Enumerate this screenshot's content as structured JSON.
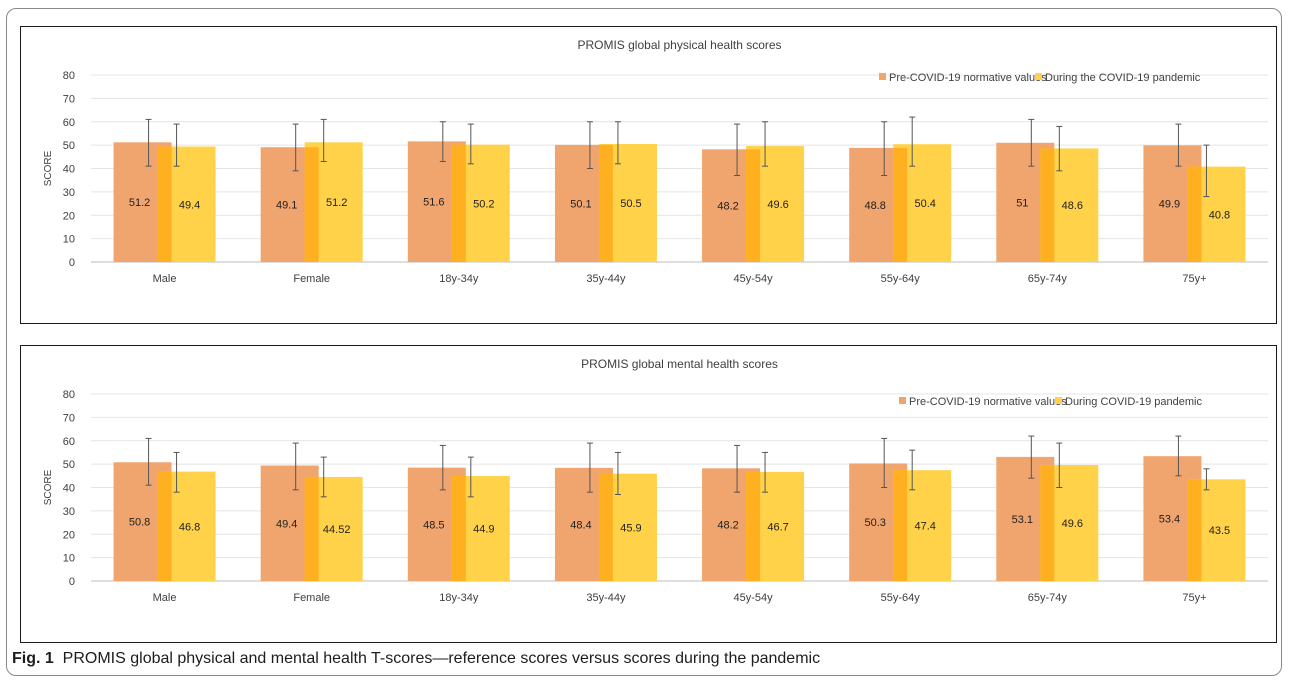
{
  "caption": {
    "label": "Fig. 1",
    "text": "PROMIS global physical and mental health T-scores—reference scores versus scores during the pandemic"
  },
  "colors": {
    "pre": "#f0a46e",
    "during": "#ffd24a",
    "overlap": "#ffb020",
    "error_bar": "#555555",
    "grid": "#e4e4e4",
    "text": "#404040"
  },
  "chart_data": [
    {
      "type": "bar",
      "title": "PROMIS global physical health scores",
      "ylabel": "SCORE",
      "xlabel": "",
      "ylim": [
        0,
        80
      ],
      "yticks": [
        0,
        10,
        20,
        30,
        40,
        50,
        60,
        70,
        80
      ],
      "grid": true,
      "legend_position": "top-right",
      "categories": [
        "Male",
        "Female",
        "18y-34y",
        "35y-44y",
        "45y-54y",
        "55y-64y",
        "65y-74y",
        "75y+"
      ],
      "series": [
        {
          "name": "Pre-COVID-19 normative values",
          "values": [
            51.2,
            49.1,
            51.6,
            50.1,
            48.2,
            48.8,
            51,
            49.9
          ],
          "labels": [
            "51.2",
            "49.1",
            "51.6",
            "50.1",
            "48.2",
            "48.8",
            "51",
            "49.9"
          ],
          "err_low": [
            41,
            39,
            43,
            40,
            37,
            37,
            41,
            41
          ],
          "err_high": [
            61,
            59,
            60,
            60,
            59,
            60,
            61,
            59
          ]
        },
        {
          "name": "During the COVID-19 pandemic",
          "values": [
            49.4,
            51.2,
            50.2,
            50.5,
            49.6,
            50.4,
            48.6,
            40.8
          ],
          "labels": [
            "49.4",
            "51.2",
            "50.2",
            "50.5",
            "49.6",
            "50.4",
            "48.6",
            "40.8"
          ],
          "err_low": [
            41,
            43,
            42,
            42,
            41,
            41,
            39,
            28
          ],
          "err_high": [
            59,
            61,
            59,
            60,
            60,
            62,
            58,
            50
          ]
        }
      ]
    },
    {
      "type": "bar",
      "title": "PROMIS global mental health scores",
      "ylabel": "SCORE",
      "xlabel": "",
      "ylim": [
        0,
        80
      ],
      "yticks": [
        0,
        10,
        20,
        30,
        40,
        50,
        60,
        70,
        80
      ],
      "grid": true,
      "legend_position": "top-right",
      "categories": [
        "Male",
        "Female",
        "18y-34y",
        "35y-44y",
        "45y-54y",
        "55y-64y",
        "65y-74y",
        "75y+"
      ],
      "series": [
        {
          "name": "Pre-COVID-19 normative values",
          "values": [
            50.8,
            49.4,
            48.5,
            48.4,
            48.2,
            50.3,
            53.1,
            53.4
          ],
          "labels": [
            "50.8",
            "49.4",
            "48.5",
            "48.4",
            "48.2",
            "50.3",
            "53.1",
            "53.4"
          ],
          "err_low": [
            41,
            39,
            39,
            38,
            38,
            40,
            44,
            45
          ],
          "err_high": [
            61,
            59,
            58,
            59,
            58,
            61,
            62,
            62
          ]
        },
        {
          "name": "During COVID-19 pandemic",
          "values": [
            46.8,
            44.52,
            44.9,
            45.9,
            46.7,
            47.4,
            49.6,
            43.5
          ],
          "labels": [
            "46.8",
            "44.52",
            "44.9",
            "45.9",
            "46.7",
            "47.4",
            "49.6",
            "43.5"
          ],
          "err_low": [
            38,
            36,
            36,
            37,
            38,
            39,
            40,
            39
          ],
          "err_high": [
            55,
            53,
            53,
            55,
            55,
            56,
            59,
            48
          ]
        }
      ]
    }
  ]
}
